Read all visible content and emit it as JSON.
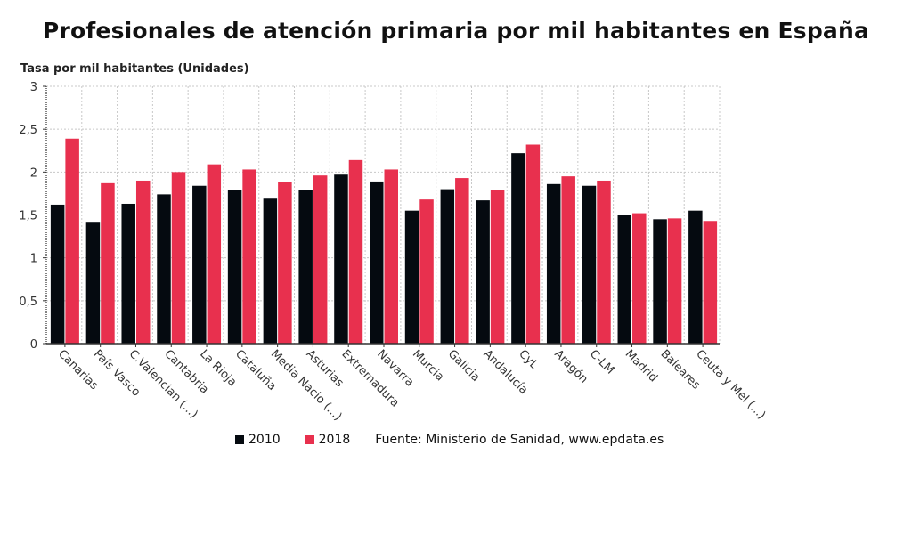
{
  "title": "Profesionales de atención primaria por mil habitantes en España",
  "legend": {
    "items": [
      {
        "label": "2010",
        "color": "#050a10"
      },
      {
        "label": "2018",
        "color": "#e8304e"
      }
    ],
    "source": "Fuente: Ministerio de Sanidad, www.epdata.es"
  },
  "chart_data": {
    "type": "bar",
    "title": "Profesionales de atención primaria por mil habitantes en España",
    "xlabel": "",
    "ylabel": "Tasa por mil habitantes (Unidades)",
    "ylim": [
      0,
      3
    ],
    "yticks": [
      "0",
      "0,5",
      "1",
      "1,5",
      "2",
      "2,5",
      "3"
    ],
    "ytick_values": [
      0,
      0.5,
      1,
      1.5,
      2,
      2.5,
      3
    ],
    "grid": true,
    "legend_position": "bottom",
    "categories": [
      "Canarias",
      "País Vasco",
      "C.Valencian (...)",
      "Cantabria",
      "La Rioja",
      "Cataluña",
      "Media Nacio (...)",
      "Asturias",
      "Extremadura",
      "Navarra",
      "Murcia",
      "Galicia",
      "Andalucía",
      "CyL",
      "Aragón",
      "C-LM",
      "Madrid",
      "Baleares",
      "Ceuta y Mel (...)"
    ],
    "series": [
      {
        "name": "2010",
        "color": "#050a10",
        "values": [
          1.62,
          1.42,
          1.63,
          1.74,
          1.84,
          1.79,
          1.7,
          1.79,
          1.97,
          1.89,
          1.55,
          1.8,
          1.67,
          2.22,
          1.86,
          1.84,
          1.5,
          1.45,
          1.55
        ]
      },
      {
        "name": "2018",
        "color": "#e8304e",
        "values": [
          2.39,
          1.87,
          1.9,
          2.0,
          2.09,
          2.03,
          1.88,
          1.96,
          2.14,
          2.03,
          1.68,
          1.93,
          1.79,
          2.32,
          1.95,
          1.9,
          1.52,
          1.46,
          1.43
        ]
      }
    ]
  }
}
